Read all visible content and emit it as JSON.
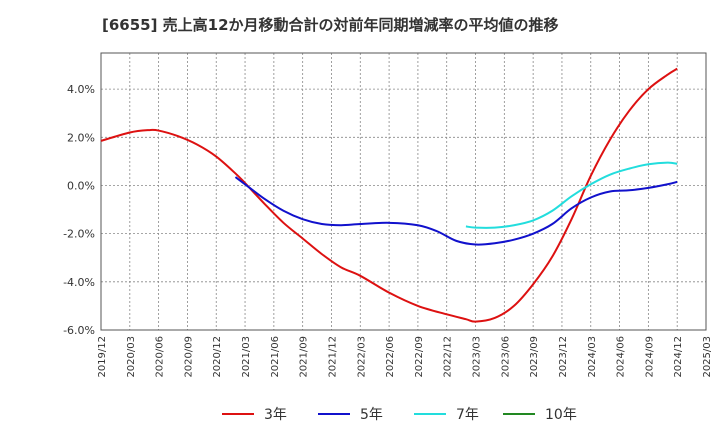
{
  "chart_data": {
    "type": "line",
    "title": "[6655]  売上高12か月移動合計の対前年同期増減率の平均値の推移",
    "xlabel": "",
    "ylabel": "",
    "ylim": [
      -6.0,
      5.5
    ],
    "y_ticks": [
      "4.0%",
      "2.0%",
      "0.0%",
      "-2.0%",
      "-4.0%",
      "-6.0%"
    ],
    "y_tick_values": [
      4,
      2,
      0,
      -2,
      -4,
      -6
    ],
    "x_ticks": [
      "2019/12",
      "2020/03",
      "2020/06",
      "2020/09",
      "2020/12",
      "2021/03",
      "2021/06",
      "2021/09",
      "2021/12",
      "2022/03",
      "2022/06",
      "2022/09",
      "2022/12",
      "2023/03",
      "2023/06",
      "2023/09",
      "2023/12",
      "2024/03",
      "2024/06",
      "2024/09",
      "2024/12",
      "2025/03"
    ],
    "x_range": [
      "2019/12",
      "2025/03"
    ],
    "grid": true,
    "legend_position": "bottom",
    "series": [
      {
        "name": "3年",
        "color": "#dd1111",
        "x": [
          "2019/12",
          "2020/03",
          "2020/05",
          "2020/06",
          "2020/08",
          "2020/10",
          "2020/12",
          "2021/02",
          "2021/03",
          "2021/05",
          "2021/07",
          "2021/09",
          "2021/11",
          "2022/01",
          "2022/03",
          "2022/06",
          "2022/09",
          "2022/12",
          "2023/02",
          "2023/03",
          "2023/05",
          "2023/07",
          "2023/09",
          "2023/11",
          "2024/01",
          "2024/03",
          "2024/05",
          "2024/07",
          "2024/09",
          "2024/11",
          "2024/12"
        ],
        "values": [
          1.85,
          2.2,
          2.3,
          2.28,
          2.05,
          1.7,
          1.2,
          0.5,
          0.1,
          -0.75,
          -1.55,
          -2.2,
          -2.85,
          -3.4,
          -3.75,
          -4.45,
          -5.0,
          -5.35,
          -5.55,
          -5.65,
          -5.5,
          -5.0,
          -4.1,
          -2.95,
          -1.4,
          0.4,
          1.9,
          3.1,
          4.0,
          4.6,
          4.85
        ]
      },
      {
        "name": "5年",
        "color": "#1111cc",
        "x": [
          "2021/02",
          "2021/03",
          "2021/05",
          "2021/07",
          "2021/09",
          "2021/11",
          "2022/01",
          "2022/03",
          "2022/06",
          "2022/09",
          "2022/11",
          "2023/01",
          "2023/03",
          "2023/05",
          "2023/07",
          "2023/09",
          "2023/11",
          "2024/01",
          "2024/03",
          "2024/05",
          "2024/07",
          "2024/09",
          "2024/11",
          "2024/12"
        ],
        "values": [
          0.35,
          0.05,
          -0.55,
          -1.05,
          -1.4,
          -1.6,
          -1.65,
          -1.6,
          -1.55,
          -1.65,
          -1.9,
          -2.3,
          -2.45,
          -2.4,
          -2.25,
          -2.0,
          -1.6,
          -0.95,
          -0.5,
          -0.25,
          -0.2,
          -0.1,
          0.05,
          0.15
        ]
      },
      {
        "name": "7年",
        "color": "#22dddd",
        "x": [
          "2023/02",
          "2023/03",
          "2023/05",
          "2023/07",
          "2023/09",
          "2023/11",
          "2024/01",
          "2024/03",
          "2024/05",
          "2024/07",
          "2024/09",
          "2024/11",
          "2024/12"
        ],
        "values": [
          -1.7,
          -1.75,
          -1.75,
          -1.65,
          -1.45,
          -1.05,
          -0.45,
          0.05,
          0.45,
          0.7,
          0.88,
          0.95,
          0.9
        ]
      },
      {
        "name": "10年",
        "color": "#228822",
        "x": [],
        "values": []
      }
    ]
  }
}
